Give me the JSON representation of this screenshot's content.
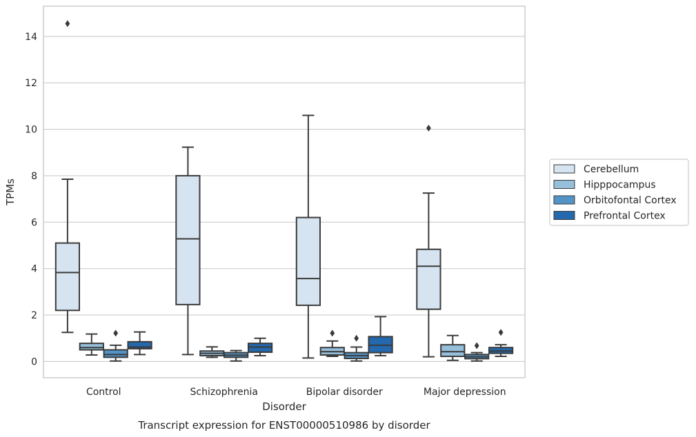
{
  "chart_data": {
    "type": "box",
    "title": "",
    "caption": "Transcript expression for ENST00000510986 by disorder",
    "xlabel": "Disorder",
    "ylabel": "TPMs",
    "ylim": [
      -0.7,
      15.3
    ],
    "yticks": [
      0,
      2,
      4,
      6,
      8,
      10,
      12,
      14
    ],
    "grid": "horizontal",
    "legend_position": "right",
    "categories": [
      "Control",
      "Schizophrenia",
      "Bipolar disorder",
      "Major depression"
    ],
    "series": [
      {
        "name": "Cerebellum",
        "color": "#d6e3f1",
        "boxes": [
          {
            "whisker_low": 1.25,
            "q1": 2.2,
            "median": 3.83,
            "q3": 5.1,
            "whisker_high": 7.85,
            "outliers": [
              14.55
            ]
          },
          {
            "whisker_low": 0.3,
            "q1": 2.45,
            "median": 5.28,
            "q3": 8.0,
            "whisker_high": 9.23,
            "outliers": []
          },
          {
            "whisker_low": 0.15,
            "q1": 2.42,
            "median": 3.57,
            "q3": 6.2,
            "whisker_high": 10.6,
            "outliers": []
          },
          {
            "whisker_low": 0.2,
            "q1": 2.25,
            "median": 4.1,
            "q3": 4.83,
            "whisker_high": 7.25,
            "outliers": [
              10.05
            ]
          }
        ]
      },
      {
        "name": "Hipppocampus",
        "color": "#95bfdb",
        "boxes": [
          {
            "whisker_low": 0.28,
            "q1": 0.5,
            "median": 0.6,
            "q3": 0.78,
            "whisker_high": 1.18,
            "outliers": []
          },
          {
            "whisker_low": 0.18,
            "q1": 0.25,
            "median": 0.35,
            "q3": 0.45,
            "whisker_high": 0.63,
            "outliers": []
          },
          {
            "whisker_low": 0.22,
            "q1": 0.28,
            "median": 0.42,
            "q3": 0.6,
            "whisker_high": 0.88,
            "outliers": [
              1.22
            ]
          },
          {
            "whisker_low": 0.05,
            "q1": 0.22,
            "median": 0.42,
            "q3": 0.72,
            "whisker_high": 1.12,
            "outliers": []
          }
        ]
      },
      {
        "name": "Orbitofontal Cortex",
        "color": "#5393c6",
        "boxes": [
          {
            "whisker_low": 0.02,
            "q1": 0.18,
            "median": 0.3,
            "q3": 0.5,
            "whisker_high": 0.7,
            "outliers": [
              1.22
            ]
          },
          {
            "whisker_low": 0.02,
            "q1": 0.18,
            "median": 0.27,
            "q3": 0.38,
            "whisker_high": 0.47,
            "outliers": []
          },
          {
            "whisker_low": 0.02,
            "q1": 0.13,
            "median": 0.25,
            "q3": 0.38,
            "whisker_high": 0.62,
            "outliers": [
              1.0
            ]
          },
          {
            "whisker_low": 0.02,
            "q1": 0.12,
            "median": 0.2,
            "q3": 0.3,
            "whisker_high": 0.38,
            "outliers": [
              0.68
            ]
          }
        ]
      },
      {
        "name": "Prefrontal Cortex",
        "color": "#2468ad",
        "boxes": [
          {
            "whisker_low": 0.3,
            "q1": 0.55,
            "median": 0.62,
            "q3": 0.85,
            "whisker_high": 1.27,
            "outliers": []
          },
          {
            "whisker_low": 0.25,
            "q1": 0.4,
            "median": 0.62,
            "q3": 0.78,
            "whisker_high": 1.0,
            "outliers": []
          },
          {
            "whisker_low": 0.25,
            "q1": 0.38,
            "median": 0.7,
            "q3": 1.07,
            "whisker_high": 1.93,
            "outliers": []
          },
          {
            "whisker_low": 0.22,
            "q1": 0.35,
            "median": 0.45,
            "q3": 0.6,
            "whisker_high": 0.72,
            "outliers": [
              1.25
            ]
          }
        ]
      }
    ]
  }
}
